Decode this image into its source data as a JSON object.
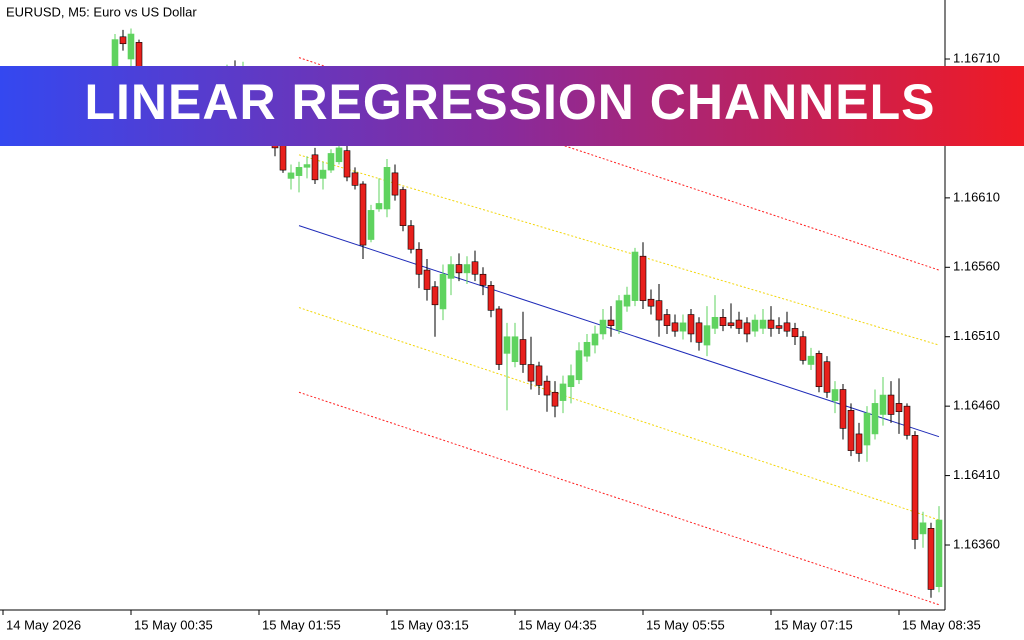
{
  "chart_data": {
    "type": "candlestick",
    "title": "EURUSD, M5:  Euro vs US Dollar",
    "banner": "LINEAR REGRESSION CHANNELS",
    "up_color": "#5fd35f",
    "down_color": "#e8201c",
    "xlim": [
      -14.375,
      103.75
    ],
    "ylim": [
      1.163132,
      1.167525
    ],
    "yticks": [
      {
        "value": 1.1671,
        "label": "1.16710"
      },
      {
        "value": 1.1661,
        "label": "1.16610"
      },
      {
        "value": 1.1656,
        "label": "1.16560"
      },
      {
        "value": 1.1651,
        "label": "1.16510"
      },
      {
        "value": 1.1646,
        "label": "1.16460"
      },
      {
        "value": 1.1641,
        "label": "1.16410"
      },
      {
        "value": 1.1636,
        "label": "1.16360"
      }
    ],
    "xticks": [
      {
        "value": -14,
        "label": "14 May 2026"
      },
      {
        "value": 2,
        "label": "15 May 00:35"
      },
      {
        "value": 18,
        "label": "15 May 01:55"
      },
      {
        "value": 34,
        "label": "15 May 03:15"
      },
      {
        "value": 50,
        "label": "15 May 04:35"
      },
      {
        "value": 66,
        "label": "15 May 05:55"
      },
      {
        "value": 82,
        "label": "15 May 07:15"
      },
      {
        "value": 98,
        "label": "15 May 08:35"
      }
    ],
    "open": [
      1.1667,
      1.16726,
      1.1671,
      1.16722,
      1.16688,
      1.16675,
      1.16685,
      1.16678,
      1.16665,
      1.16676,
      1.16684,
      1.1669,
      1.16694,
      1.16688,
      1.16696,
      1.167,
      1.16694,
      1.16702,
      1.1668,
      1.16668,
      1.16656,
      1.16648,
      1.16624,
      1.16626,
      1.16632,
      1.16641,
      1.16624,
      1.1663,
      1.16636,
      1.16644,
      1.16628,
      1.1662,
      1.1658,
      1.16602,
      1.16602,
      1.16628,
      1.16616,
      1.1659,
      1.16573,
      1.16558,
      1.16546,
      1.1653,
      1.16552,
      1.16562,
      1.16556,
      1.16564,
      1.16555,
      1.16547,
      1.1653,
      1.16498,
      1.16492,
      1.16508,
      1.1649,
      1.16489,
      1.16478,
      1.1647,
      1.16464,
      1.16474,
      1.16479,
      1.16496,
      1.16504,
      1.16512,
      1.16522,
      1.16515,
      1.16532,
      1.16536,
      1.16568,
      1.16537,
      1.16536,
      1.16526,
      1.1652,
      1.16514,
      1.16526,
      1.1652,
      1.16504,
      1.16516,
      1.16524,
      1.1652,
      1.16522,
      1.1652,
      1.16514,
      1.16516,
      1.16522,
      1.16518,
      1.1652,
      1.16516,
      1.1651,
      1.1649,
      1.16498,
      1.16492,
      1.16464,
      1.16472,
      1.16457,
      1.1644,
      1.16432,
      1.1644,
      1.16454,
      1.16468,
      1.16462,
      1.1646,
      1.16439,
      1.16368,
      1.16372,
      1.1633
    ],
    "high": [
      1.16728,
      1.16731,
      1.16732,
      1.16724,
      1.16695,
      1.1669,
      1.16692,
      1.16686,
      1.1668,
      1.16688,
      1.16696,
      1.167,
      1.16702,
      1.16698,
      1.16706,
      1.16709,
      1.16708,
      1.16704,
      1.16686,
      1.16676,
      1.16664,
      1.16655,
      1.16634,
      1.16636,
      1.1664,
      1.16646,
      1.16636,
      1.16645,
      1.1665,
      1.1665,
      1.16632,
      1.16622,
      1.16605,
      1.16624,
      1.16638,
      1.16634,
      1.16618,
      1.16594,
      1.16578,
      1.16566,
      1.1655,
      1.16562,
      1.16568,
      1.1657,
      1.16568,
      1.16572,
      1.1656,
      1.1655,
      1.16532,
      1.1652,
      1.1652,
      1.16528,
      1.1651,
      1.16492,
      1.16482,
      1.16478,
      1.16482,
      1.1649,
      1.16506,
      1.16512,
      1.16518,
      1.1653,
      1.16532,
      1.1654,
      1.16546,
      1.16574,
      1.16578,
      1.16544,
      1.16548,
      1.1653,
      1.16526,
      1.16526,
      1.1653,
      1.16524,
      1.16532,
      1.1654,
      1.1653,
      1.16534,
      1.16528,
      1.16524,
      1.16526,
      1.1653,
      1.16532,
      1.16524,
      1.16528,
      1.1652,
      1.16514,
      1.16502,
      1.165,
      1.16496,
      1.16478,
      1.16476,
      1.16462,
      1.16448,
      1.1646,
      1.16472,
      1.16481,
      1.16478,
      1.1648,
      1.16462,
      1.16442,
      1.16384,
      1.16376,
      1.16388
    ],
    "low": [
      1.1666,
      1.16716,
      1.167,
      1.1668,
      1.1667,
      1.16668,
      1.16672,
      1.1666,
      1.16658,
      1.1667,
      1.16678,
      1.16682,
      1.16684,
      1.1668,
      1.16688,
      1.1669,
      1.16686,
      1.16676,
      1.16664,
      1.1665,
      1.1664,
      1.16628,
      1.16616,
      1.16614,
      1.16624,
      1.1662,
      1.16616,
      1.16628,
      1.16634,
      1.16622,
      1.16616,
      1.16566,
      1.16578,
      1.166,
      1.16596,
      1.16608,
      1.16586,
      1.1657,
      1.16545,
      1.16536,
      1.1651,
      1.16522,
      1.1654,
      1.1655,
      1.16548,
      1.1655,
      1.1654,
      1.16524,
      1.16486,
      1.16457,
      1.16488,
      1.16484,
      1.16472,
      1.16468,
      1.16456,
      1.16452,
      1.16455,
      1.16462,
      1.16476,
      1.16492,
      1.16498,
      1.16508,
      1.1651,
      1.16512,
      1.16528,
      1.16532,
      1.1653,
      1.16526,
      1.1651,
      1.16512,
      1.1651,
      1.16508,
      1.16506,
      1.165,
      1.16496,
      1.16512,
      1.16514,
      1.16516,
      1.16512,
      1.16506,
      1.1651,
      1.16512,
      1.1651,
      1.16512,
      1.1651,
      1.16504,
      1.1649,
      1.16486,
      1.1647,
      1.16466,
      1.16455,
      1.16436,
      1.16424,
      1.1642,
      1.1642,
      1.16436,
      1.16446,
      1.16448,
      1.1644,
      1.16436,
      1.16357,
      1.16358,
      1.16322,
      1.16326
    ],
    "close": [
      1.16724,
      1.16721,
      1.16728,
      1.16688,
      1.16675,
      1.16685,
      1.16678,
      1.16665,
      1.16676,
      1.16684,
      1.1669,
      1.16694,
      1.16688,
      1.16696,
      1.167,
      1.16694,
      1.16702,
      1.1668,
      1.16668,
      1.16656,
      1.16646,
      1.1663,
      1.16628,
      1.16632,
      1.16634,
      1.16623,
      1.1663,
      1.16642,
      1.16646,
      1.16625,
      1.16619,
      1.16576,
      1.16601,
      1.16606,
      1.16632,
      1.16612,
      1.1659,
      1.16573,
      1.16555,
      1.16544,
      1.16533,
      1.16555,
      1.16562,
      1.16556,
      1.16562,
      1.16555,
      1.16547,
      1.16529,
      1.1649,
      1.1651,
      1.1651,
      1.1649,
      1.16478,
      1.16475,
      1.16468,
      1.1646,
      1.16476,
      1.16482,
      1.165,
      1.16506,
      1.16512,
      1.16522,
      1.16518,
      1.16536,
      1.1654,
      1.16571,
      1.16536,
      1.16532,
      1.16522,
      1.16518,
      1.16514,
      1.1652,
      1.16512,
      1.16506,
      1.16518,
      1.16524,
      1.16518,
      1.16518,
      1.16516,
      1.16512,
      1.16522,
      1.16522,
      1.16516,
      1.16516,
      1.16514,
      1.1651,
      1.16493,
      1.16496,
      1.16474,
      1.1647,
      1.16472,
      1.16444,
      1.16428,
      1.16426,
      1.16455,
      1.16462,
      1.16468,
      1.16454,
      1.16456,
      1.16439,
      1.16364,
      1.16376,
      1.16328,
      1.16378
    ],
    "lines": [
      {
        "color": "#ff2020",
        "dash": true,
        "x": [
          23,
          103
        ],
        "values": [
          1.16711,
          1.16558
        ]
      },
      {
        "color": "#f2d60c",
        "dash": true,
        "x": [
          23,
          103
        ],
        "values": [
          1.16641,
          1.16504
        ]
      },
      {
        "color": "#1f2bb8",
        "dash": false,
        "x": [
          23,
          103
        ],
        "values": [
          1.1659,
          1.16438
        ]
      },
      {
        "color": "#f2d60c",
        "dash": true,
        "x": [
          23,
          103
        ],
        "values": [
          1.16531,
          1.16378
        ]
      },
      {
        "color": "#ff2020",
        "dash": true,
        "x": [
          23,
          103
        ],
        "values": [
          1.1647,
          1.16317
        ]
      }
    ]
  }
}
